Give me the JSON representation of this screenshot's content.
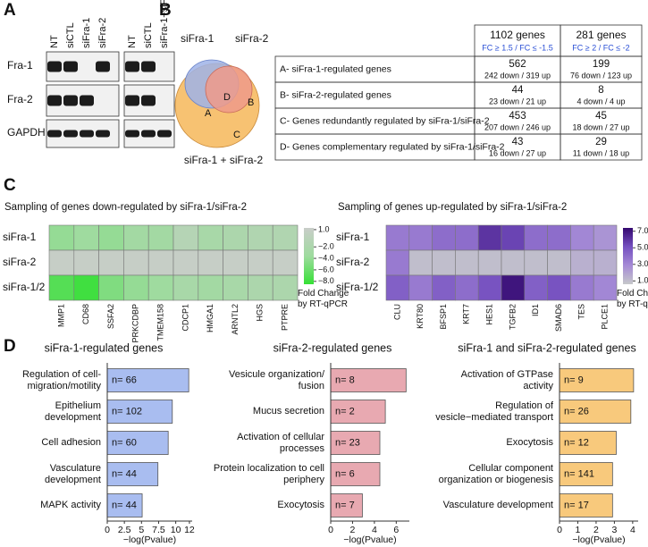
{
  "panel_labels": [
    "A",
    "B",
    "C",
    "D"
  ],
  "blot": {
    "lanes": [
      "NT",
      "siCTL",
      "siFra-1",
      "siFra-2",
      "NT",
      "siCTL",
      "siFra-1+siFra-2"
    ],
    "rows": [
      "Fra-1",
      "Fra-2",
      "GAPDH"
    ]
  },
  "venn": {
    "sets": [
      "siFra-1",
      "siFra-2",
      "siFra-1 + siFra-2"
    ],
    "regions": [
      "A",
      "B",
      "C",
      "D"
    ]
  },
  "table": {
    "columns": [
      {
        "title": "1102 genes",
        "subtitle": "FC ≥ 1.5 / FC ≤ -1.5"
      },
      {
        "title": "281 genes",
        "subtitle": "FC ≥ 2 / FC ≤ -2"
      }
    ],
    "rows": [
      {
        "label": "A- siFra-1-regulated genes",
        "cells": [
          {
            "total": 562,
            "detail": "242 down / 319 up"
          },
          {
            "total": 199,
            "detail": "76 down / 123 up"
          }
        ]
      },
      {
        "label": "B- siFra-2-regulated genes",
        "cells": [
          {
            "total": 44,
            "detail": "23 down / 21 up"
          },
          {
            "total": 8,
            "detail": "4 down / 4 up"
          }
        ]
      },
      {
        "label": "C- Genes redundantly regulated by siFra-1/siFra-2",
        "cells": [
          {
            "total": 453,
            "detail": "207 down / 246 up"
          },
          {
            "total": 45,
            "detail": "18 down / 27 up"
          }
        ]
      },
      {
        "label": "D- Genes complementary regulated by siFra-1/siFra-2",
        "cells": [
          {
            "total": 43,
            "detail": "16 down / 27 up"
          },
          {
            "total": 29,
            "detail": "11 down / 18 up"
          }
        ]
      }
    ]
  },
  "chart_data": [
    {
      "type": "heatmap",
      "title": "Sampling of genes down-regulated by siFra-1/siFra-2",
      "rows": [
        "siFra-1",
        "siFra-2",
        "siFra-1/2"
      ],
      "columns": [
        "MMP1",
        "CD68",
        "SSFA2",
        "PRKCDBP",
        "TMEM158",
        "CDCP1",
        "HMGA1",
        "ARNTL2",
        "HGS",
        "PTPRE"
      ],
      "values": [
        [
          -4,
          -3.5,
          -4,
          -3,
          -3,
          -1,
          -2.5,
          -2,
          -1.5,
          -1.5
        ],
        [
          1,
          1,
          1,
          1,
          1,
          1,
          1,
          1,
          1,
          1
        ],
        [
          -7,
          -8,
          -5,
          -4,
          -3.5,
          -2.5,
          -3,
          -2.5,
          -2,
          -2
        ]
      ],
      "clim": [
        -8.5,
        1.3
      ],
      "colormap": [
        "#35e035",
        "#9edb9e",
        "#c9cdc9"
      ],
      "cticks": [
        {
          "value": 1,
          "label": "1.0"
        },
        {
          "value": -2,
          "label": "−2.0"
        },
        {
          "value": -4,
          "label": "−4.0"
        },
        {
          "value": -6,
          "label": "−6.0"
        },
        {
          "value": -8,
          "label": "−8.0"
        }
      ],
      "colorbar_label": "Fold Change by RT-qPCR"
    },
    {
      "type": "heatmap",
      "title": "Sampling of genes up-regulated by siFra-1/siFra-2",
      "rows": [
        "siFra-1",
        "siFra-2",
        "siFra-1/2"
      ],
      "columns": [
        "CLU",
        "KRT80",
        "BFSP1",
        "KRT7",
        "HES1",
        "TGFB2",
        "ID1",
        "SMAD6",
        "TES",
        "PLCE1"
      ],
      "values": [
        [
          3.5,
          3.5,
          4,
          4,
          6,
          5.5,
          4,
          4,
          3,
          2.5
        ],
        [
          3.5,
          1,
          1,
          1,
          1,
          1,
          1,
          1,
          1.5,
          1.5
        ],
        [
          4.5,
          3.5,
          4.5,
          4,
          5,
          7,
          4.5,
          5,
          3.5,
          3
        ]
      ],
      "clim": [
        0.6,
        7.4
      ],
      "colormap": [
        "#c6c9ca",
        "#a58ad6",
        "#7550c0",
        "#34086f"
      ],
      "cticks": [
        {
          "value": 7,
          "label": "7.0"
        },
        {
          "value": 5,
          "label": "5.0"
        },
        {
          "value": 3,
          "label": "3.0"
        },
        {
          "value": 1,
          "label": "1.0"
        }
      ],
      "colorbar_label": "Fold Change by RT-qPCR"
    },
    {
      "type": "barh",
      "title": "siFra-1-regulated genes",
      "categories": [
        "Regulation of cell-migration/motility",
        "Epithelium development",
        "Cell adhesion",
        "Vasculature development",
        "MAPK activity"
      ],
      "values": [
        11.9,
        9.5,
        8.9,
        7.4,
        5.1
      ],
      "annotations": [
        "n= 66",
        "n= 102",
        "n= 60",
        "n= 44",
        "n= 44"
      ],
      "color": "#a9bdf0",
      "xlim": [
        0,
        12.4
      ],
      "xticks": [
        0,
        2.5,
        5,
        7.5,
        10,
        12
      ],
      "xlabel": "−log(Pvalue)"
    },
    {
      "type": "barh",
      "title": "siFra-2-regulated genes",
      "categories": [
        "Vesicule organization/ fusion",
        "Mucus secretion",
        "Activation of cellular processes",
        "Protein localization to cell periphery",
        "Exocytosis"
      ],
      "values": [
        6.9,
        5.0,
        4.5,
        4.5,
        2.9
      ],
      "annotations": [
        "n= 8",
        "n= 2",
        "n= 23",
        "n= 6",
        "n= 7"
      ],
      "color": "#e8a9b1",
      "xlim": [
        0,
        7.2
      ],
      "xticks": [
        0,
        2,
        4,
        6
      ],
      "xlabel": "−log(Pvalue)"
    },
    {
      "type": "barh",
      "title": "siFra-1 and siFra-2-regulated genes",
      "categories": [
        "Activation of GTPase activity",
        "Regulation of vesicle−mediated transport",
        "Exocytosis",
        "Cellular component organization or biogenesis",
        "Vasculature development"
      ],
      "values": [
        4.05,
        3.9,
        3.1,
        2.9,
        2.9
      ],
      "annotations": [
        "n= 9",
        "n= 26",
        "n= 12",
        "n= 141",
        "n= 17"
      ],
      "color": "#f8c97c",
      "xlim": [
        0,
        4.3
      ],
      "xticks": [
        0,
        1,
        2,
        3,
        4
      ],
      "xlabel": "−log(Pvalue)"
    }
  ]
}
